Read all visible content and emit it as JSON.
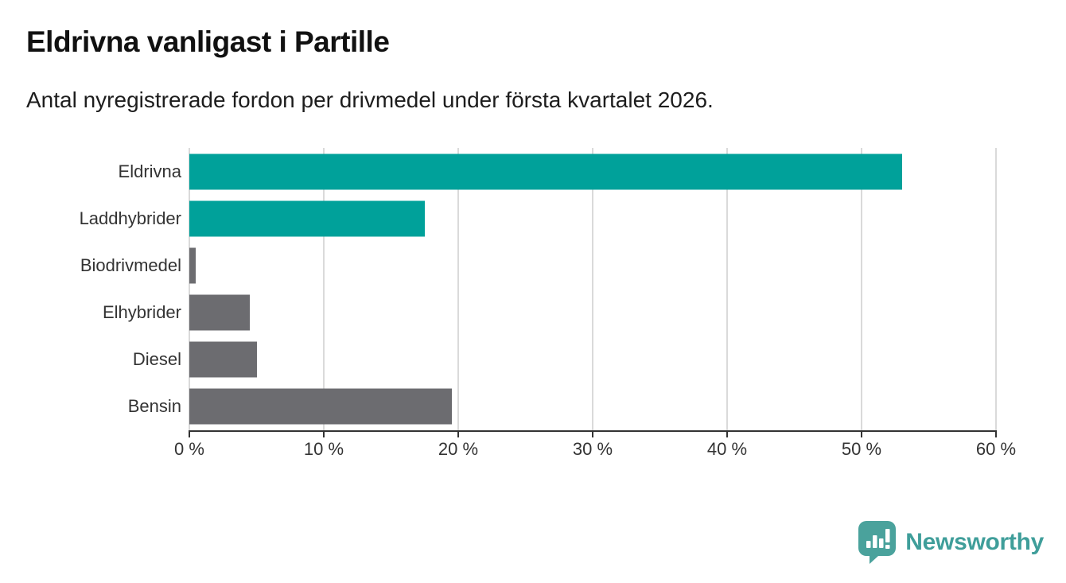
{
  "page": {
    "title": "Eldrivna vanligast i Partille",
    "subtitle": "Antal nyregistrerade fordon per drivmedel under första kvartalet 2026."
  },
  "chart_data": {
    "type": "bar",
    "orientation": "horizontal",
    "title": "Eldrivna vanligast i Partille",
    "subtitle": "Antal nyregistrerade fordon per drivmedel under första kvartalet 2026.",
    "categories": [
      "Eldrivna",
      "Laddhybrider",
      "Biodrivmedel",
      "Elhybrider",
      "Diesel",
      "Bensin"
    ],
    "values": [
      53,
      17.5,
      0.5,
      4.5,
      5,
      19.5
    ],
    "unit": "%",
    "xlim": [
      0,
      60
    ],
    "x_tick_values": [
      0,
      10,
      20,
      30,
      40,
      50,
      60
    ],
    "x_tick_labels": [
      "0 %",
      "10 %",
      "20 %",
      "30 %",
      "40 %",
      "50 %",
      "60 %"
    ],
    "bar_colors": [
      "#00a19a",
      "#00a19a",
      "#6c6c70",
      "#6c6c70",
      "#6c6c70",
      "#6c6c70"
    ],
    "highlight_color": "#00a19a",
    "default_color": "#6c6c70",
    "gridline_color": "#dadada",
    "axis_color": "#333333",
    "grid": true,
    "legend": false
  },
  "branding": {
    "logo_text": "Newsworthy",
    "logo_color": "#3f9e9a",
    "logo_icon": "newsworthy-speech-bubble-chart-icon",
    "icon_color": "#4aa29c"
  }
}
